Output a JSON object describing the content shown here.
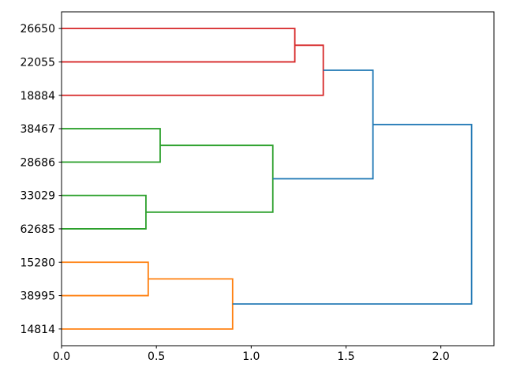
{
  "figure": {
    "background": "#ffffff",
    "frame_color": "#000000"
  },
  "chart_data": {
    "type": "dendrogram",
    "orientation": "right",
    "title": "",
    "xlabel": "",
    "ylabel": "",
    "grid": false,
    "legend": false,
    "xlim": [
      0,
      2.28
    ],
    "ylim": [
      0,
      100
    ],
    "x_ticks": [
      {
        "value": 0.0,
        "label": "0.0"
      },
      {
        "value": 0.5,
        "label": "0.5"
      },
      {
        "value": 1.0,
        "label": "1.0"
      },
      {
        "value": 1.5,
        "label": "1.5"
      },
      {
        "value": 2.0,
        "label": "2.0"
      }
    ],
    "leaves": [
      {
        "label": "26650",
        "pos": 95
      },
      {
        "label": "22055",
        "pos": 85
      },
      {
        "label": "18884",
        "pos": 75
      },
      {
        "label": "38467",
        "pos": 65
      },
      {
        "label": "28686",
        "pos": 55
      },
      {
        "label": "33029",
        "pos": 45
      },
      {
        "label": "62685",
        "pos": 35
      },
      {
        "label": "15280",
        "pos": 25
      },
      {
        "label": "38995",
        "pos": 15
      },
      {
        "label": "14814",
        "pos": 5
      }
    ],
    "link_colors": {
      "c_red": "#d62728",
      "c_green": "#2ca02c",
      "c_orange": "#ff7f0e",
      "c_blue": "#1f77b4"
    },
    "links": [
      {
        "color": "c_red",
        "x": [
          0,
          1.23,
          1.23,
          0
        ],
        "y": [
          95,
          95,
          85,
          85
        ]
      },
      {
        "color": "c_red",
        "x": [
          1.23,
          1.38,
          1.38,
          0
        ],
        "y": [
          90,
          90,
          75,
          75
        ]
      },
      {
        "color": "c_green",
        "x": [
          0,
          0.52,
          0.52,
          0
        ],
        "y": [
          65,
          65,
          55,
          55
        ]
      },
      {
        "color": "c_green",
        "x": [
          0,
          0.445,
          0.445,
          0
        ],
        "y": [
          45,
          45,
          35,
          35
        ]
      },
      {
        "color": "c_green",
        "x": [
          0.52,
          1.114,
          1.114,
          0.445
        ],
        "y": [
          60,
          60,
          40,
          40
        ]
      },
      {
        "color": "c_blue",
        "x": [
          1.38,
          1.642,
          1.642,
          1.114
        ],
        "y": [
          82.5,
          82.5,
          50,
          50
        ]
      },
      {
        "color": "c_orange",
        "x": [
          0,
          0.457,
          0.457,
          0
        ],
        "y": [
          25,
          25,
          15,
          15
        ]
      },
      {
        "color": "c_orange",
        "x": [
          0.457,
          0.902,
          0.902,
          0
        ],
        "y": [
          20,
          20,
          5,
          5
        ]
      },
      {
        "color": "c_blue",
        "x": [
          1.642,
          2.162,
          2.162,
          0.902
        ],
        "y": [
          66.25,
          66.25,
          12.5,
          12.5
        ]
      }
    ],
    "merges": [
      {
        "members": [
          "26650",
          "22055"
        ],
        "distance": 1.23,
        "color": "#d62728"
      },
      {
        "members": [
          "26650+22055",
          "18884"
        ],
        "distance": 1.38,
        "color": "#d62728"
      },
      {
        "members": [
          "38467",
          "28686"
        ],
        "distance": 0.52,
        "color": "#2ca02c"
      },
      {
        "members": [
          "33029",
          "62685"
        ],
        "distance": 0.445,
        "color": "#2ca02c"
      },
      {
        "members": [
          "38467+28686",
          "33029+62685"
        ],
        "distance": 1.114,
        "color": "#2ca02c"
      },
      {
        "members": [
          "red-cluster",
          "green-cluster"
        ],
        "distance": 1.642,
        "color": "#1f77b4"
      },
      {
        "members": [
          "15280",
          "38995"
        ],
        "distance": 0.457,
        "color": "#ff7f0e"
      },
      {
        "members": [
          "15280+38995",
          "14814"
        ],
        "distance": 0.902,
        "color": "#ff7f0e"
      },
      {
        "members": [
          "red+green-cluster",
          "orange-cluster"
        ],
        "distance": 2.162,
        "color": "#1f77b4"
      }
    ]
  }
}
